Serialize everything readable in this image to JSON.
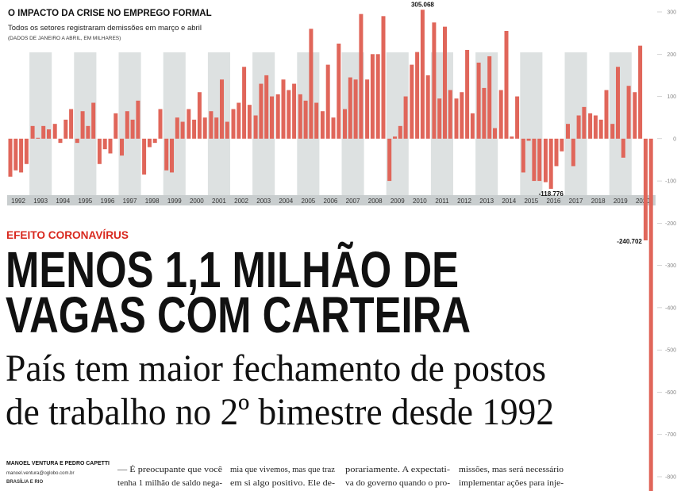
{
  "chart_data": {
    "type": "bar",
    "title": "O IMPACTO DA CRISE NO EMPREGO FORMAL",
    "subtitle": "Todos os setores registraram demissões em março e abril",
    "note": "(DADOS DE JANEIRO A ABRIL, EM MILHARES)",
    "categories": [
      "1992",
      "1993",
      "1994",
      "1995",
      "1996",
      "1997",
      "1998",
      "1999",
      "2000",
      "2001",
      "2002",
      "2003",
      "2004",
      "2005",
      "2006",
      "2007",
      "2008",
      "2009",
      "2010",
      "2011",
      "2012",
      "2013",
      "2014",
      "2015",
      "2016",
      "2017",
      "2018",
      "2019",
      "2020"
    ],
    "values": [
      [
        -90,
        -75,
        -80,
        -60
      ],
      [
        30,
        2,
        30,
        22
      ],
      [
        35,
        -10,
        45,
        70
      ],
      [
        -10,
        65,
        30,
        85
      ],
      [
        -60,
        -25,
        -35,
        60
      ],
      [
        -40,
        65,
        45,
        90
      ],
      [
        -85,
        -20,
        -10,
        70
      ],
      [
        -75,
        -80,
        50,
        40
      ],
      [
        70,
        45,
        110,
        50
      ],
      [
        65,
        50,
        140,
        40
      ],
      [
        70,
        85,
        170,
        80
      ],
      [
        55,
        130,
        150,
        100
      ],
      [
        105,
        140,
        115,
        130
      ],
      [
        105,
        90,
        260,
        85
      ],
      [
        65,
        175,
        50,
        225
      ],
      [
        70,
        145,
        140,
        295
      ],
      [
        140,
        200,
        200,
        290
      ],
      [
        -100,
        5,
        30,
        100
      ],
      [
        175,
        205,
        305.068,
        150
      ],
      [
        275,
        95,
        265,
        115
      ],
      [
        95,
        110,
        210,
        60
      ],
      [
        180,
        120,
        195,
        25
      ],
      [
        115,
        255,
        5,
        100
      ],
      [
        -80,
        -5,
        -100,
        -100
      ],
      [
        -103,
        -118.776,
        -65,
        -30
      ],
      [
        35,
        -65,
        55,
        75
      ],
      [
        60,
        55,
        45,
        115
      ],
      [
        35,
        170,
        -45,
        125
      ],
      [
        110,
        220,
        -240.702,
        -860
      ]
    ],
    "value_labels": [
      [
        null,
        null,
        null,
        null
      ],
      [
        null,
        null,
        null,
        null
      ],
      [
        null,
        null,
        null,
        null
      ],
      [
        null,
        null,
        null,
        null
      ],
      [
        null,
        null,
        null,
        null
      ],
      [
        null,
        null,
        null,
        null
      ],
      [
        null,
        null,
        null,
        null
      ],
      [
        null,
        null,
        null,
        null
      ],
      [
        null,
        null,
        null,
        null
      ],
      [
        null,
        null,
        null,
        null
      ],
      [
        null,
        null,
        null,
        null
      ],
      [
        null,
        null,
        null,
        null
      ],
      [
        null,
        null,
        null,
        null
      ],
      [
        null,
        null,
        null,
        null
      ],
      [
        null,
        null,
        null,
        null
      ],
      [
        null,
        null,
        null,
        null
      ],
      [
        null,
        null,
        null,
        null
      ],
      [
        null,
        null,
        null,
        null
      ],
      [
        null,
        null,
        "305.068",
        null
      ],
      [
        null,
        null,
        null,
        null
      ],
      [
        null,
        null,
        null,
        null
      ],
      [
        null,
        null,
        null,
        null
      ],
      [
        null,
        null,
        null,
        null
      ],
      [
        null,
        null,
        null,
        null
      ],
      [
        null,
        "-118.776",
        null,
        null
      ],
      [
        null,
        null,
        null,
        null
      ],
      [
        null,
        null,
        null,
        null
      ],
      [
        null,
        null,
        null,
        null
      ],
      [
        null,
        null,
        "-240.702",
        null
      ]
    ],
    "color": "#e0665a",
    "ylim": [
      -800,
      300
    ],
    "yticks": [
      300,
      200,
      100,
      0,
      -100,
      -200,
      -300,
      -400,
      -500,
      -600,
      -700,
      -800
    ]
  },
  "article": {
    "kicker": "EFEITO CORONAVÍRUS",
    "headline": [
      "MENOS 1,1 MILHÃO DE",
      "VAGAS COM CARTEIRA"
    ],
    "subhead": [
      "País tem maior fechamento de postos",
      "de trabalho no 2º bimestre desde 1992"
    ],
    "byline": "MANOEL VENTURA E PEDRO CAPETTI",
    "email": "manoel.ventura@oglobo.com.br",
    "location": "BRASÍLIA E RIO",
    "columns": [
      [
        "— É preocupante que você",
        "tenha 1 milhão de saldo nega-"
      ],
      [
        "mia que vivemos, mas que traz",
        "em si algo positivo. Ele de-"
      ],
      [
        "porariamente. A expectati-",
        "va do governo quando o pro-"
      ],
      [
        "missões, mas será necessário",
        "implementar ações para inje-"
      ]
    ]
  }
}
